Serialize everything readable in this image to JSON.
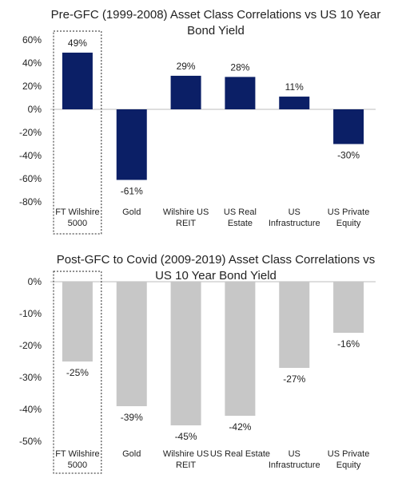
{
  "chart_data": [
    {
      "type": "bar",
      "title": "Pre-GFC (1999-2008) Asset Class Correlations vs US 10 Year Bond Yield",
      "categories": [
        [
          "FT Wilshire",
          "5000"
        ],
        [
          "Gold"
        ],
        [
          "Wilshire US",
          "REIT"
        ],
        [
          "US Real",
          "Estate"
        ],
        [
          "US",
          "Infrastructure"
        ],
        [
          "US Private",
          "Equity"
        ]
      ],
      "values": [
        49,
        -61,
        29,
        28,
        11,
        -30
      ],
      "data_labels": [
        "49%",
        "-61%",
        "29%",
        "28%",
        "11%",
        "-30%"
      ],
      "yticks": [
        "60%",
        "40%",
        "20%",
        "0%",
        "-20%",
        "-40%",
        "-60%",
        "-80%"
      ],
      "ylim": [
        -80,
        60
      ],
      "grid": false,
      "bar_color": "#0b1f66",
      "highlighted_category": "FT Wilshire 5000"
    },
    {
      "type": "bar",
      "title": "Post-GFC to Covid (2009-2019) Asset Class Correlations vs US 10 Year Bond Yield",
      "categories": [
        [
          "FT Wilshire",
          "5000"
        ],
        [
          "Gold"
        ],
        [
          "Wilshire US",
          "REIT"
        ],
        [
          "US Real Estate"
        ],
        [
          "US",
          "Infrastructure"
        ],
        [
          "US Private",
          "Equity"
        ]
      ],
      "values": [
        -25,
        -39,
        -45,
        -42,
        -27,
        -16
      ],
      "data_labels": [
        "-25%",
        "-39%",
        "-45%",
        "-42%",
        "-27%",
        "-16%"
      ],
      "yticks": [
        "0%",
        "-10%",
        "-20%",
        "-30%",
        "-40%",
        "-50%"
      ],
      "ylim": [
        -50,
        0
      ],
      "grid": false,
      "bar_color": "#c7c7c7",
      "highlighted_category": "FT Wilshire 5000"
    }
  ]
}
